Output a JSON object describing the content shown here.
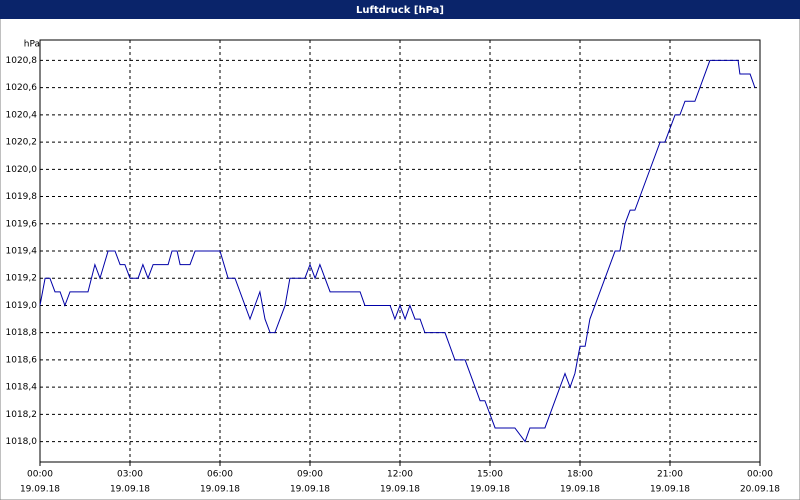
{
  "chart_data": {
    "type": "line",
    "title": "Luftdruck [hPa]",
    "ylabel": "hPa",
    "x": [
      0,
      0.17,
      0.33,
      0.5,
      0.67,
      0.83,
      1,
      1.6,
      1.83,
      2,
      2.27,
      2.5,
      2.67,
      2.83,
      3,
      3.27,
      3.43,
      3.6,
      3.77,
      4.27,
      4.4,
      4.57,
      4.67,
      5,
      5.17,
      6,
      6.27,
      6.5,
      7,
      7.33,
      7.5,
      7.67,
      7.83,
      8.17,
      8.33,
      8.83,
      9,
      9.17,
      9.33,
      9.67,
      10.67,
      10.83,
      11.67,
      11.83,
      12,
      12.17,
      12.33,
      12.5,
      12.67,
      12.83,
      13.5,
      13.83,
      14.17,
      14.67,
      14.83,
      15.17,
      15.83,
      16.17,
      16.33,
      16.83,
      17.5,
      17.67,
      17.83,
      18,
      18.17,
      18.33,
      19.17,
      19.33,
      19.5,
      19.67,
      19.83,
      20.67,
      20.83,
      21.17,
      21.33,
      21.5,
      21.83,
      22.33,
      23.27,
      23.33,
      23.67,
      23.83
    ],
    "series": [
      {
        "color": "#0000a8",
        "values": [
          1019.0,
          1019.2,
          1019.2,
          1019.1,
          1019.1,
          1019.0,
          1019.1,
          1019.1,
          1019.3,
          1019.2,
          1019.4,
          1019.4,
          1019.3,
          1019.3,
          1019.2,
          1019.2,
          1019.3,
          1019.2,
          1019.3,
          1019.3,
          1019.4,
          1019.4,
          1019.3,
          1019.3,
          1019.4,
          1019.4,
          1019.2,
          1019.2,
          1018.9,
          1019.1,
          1018.9,
          1018.8,
          1018.8,
          1019.0,
          1019.2,
          1019.2,
          1019.3,
          1019.2,
          1019.3,
          1019.1,
          1019.1,
          1019.0,
          1019.0,
          1018.9,
          1019.0,
          1018.9,
          1019.0,
          1018.9,
          1018.9,
          1018.8,
          1018.8,
          1018.6,
          1018.6,
          1018.3,
          1018.3,
          1018.1,
          1018.1,
          1018.0,
          1018.1,
          1018.1,
          1018.5,
          1018.4,
          1018.5,
          1018.7,
          1018.7,
          1018.9,
          1019.4,
          1019.4,
          1019.6,
          1019.7,
          1019.7,
          1020.2,
          1020.2,
          1020.4,
          1020.4,
          1020.5,
          1020.5,
          1020.8,
          1020.8,
          1020.7,
          1020.7,
          1020.6
        ]
      }
    ],
    "xlim": [
      0,
      24
    ],
    "xticks": [
      {
        "value": 0,
        "label": "00:00",
        "sublabel": "19.09.18"
      },
      {
        "value": 3,
        "label": "03:00",
        "sublabel": "19.09.18"
      },
      {
        "value": 6,
        "label": "06:00",
        "sublabel": "19.09.18"
      },
      {
        "value": 9,
        "label": "09:00",
        "sublabel": "19.09.18"
      },
      {
        "value": 12,
        "label": "12:00",
        "sublabel": "19.09.18"
      },
      {
        "value": 15,
        "label": "15:00",
        "sublabel": "19.09.18"
      },
      {
        "value": 18,
        "label": "18:00",
        "sublabel": "19.09.18"
      },
      {
        "value": 21,
        "label": "21:00",
        "sublabel": "19.09.18"
      },
      {
        "value": 24,
        "label": "00:00",
        "sublabel": "20.09.18"
      }
    ],
    "ylim": [
      1017.85,
      1020.95
    ],
    "yticks": [
      {
        "value": 1018.0,
        "label": "1018,0"
      },
      {
        "value": 1018.2,
        "label": "1018,2"
      },
      {
        "value": 1018.4,
        "label": "1018,4"
      },
      {
        "value": 1018.6,
        "label": "1018,6"
      },
      {
        "value": 1018.8,
        "label": "1018,8"
      },
      {
        "value": 1019.0,
        "label": "1019,0"
      },
      {
        "value": 1019.2,
        "label": "1019,2"
      },
      {
        "value": 1019.4,
        "label": "1019,4"
      },
      {
        "value": 1019.6,
        "label": "1019,6"
      },
      {
        "value": 1019.8,
        "label": "1019,8"
      },
      {
        "value": 1020.0,
        "label": "1020,0"
      },
      {
        "value": 1020.2,
        "label": "1020,2"
      },
      {
        "value": 1020.4,
        "label": "1020,4"
      },
      {
        "value": 1020.6,
        "label": "1020,6"
      },
      {
        "value": 1020.8,
        "label": "1020,8"
      }
    ],
    "grid": true
  }
}
